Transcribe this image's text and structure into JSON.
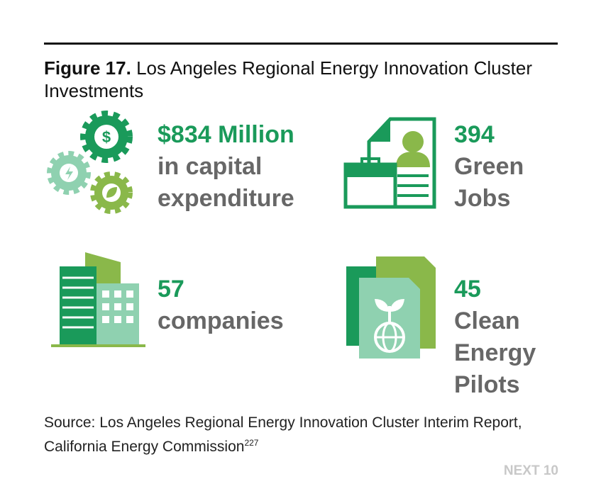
{
  "figure": {
    "label": "Figure 17.",
    "title": "Los Angeles Regional Energy Innovation Cluster Investments"
  },
  "stats": [
    {
      "headline": "$834 Million",
      "lines": [
        "in capital",
        "expenditure"
      ]
    },
    {
      "headline": "394",
      "lines": [
        "Green",
        "Jobs"
      ]
    },
    {
      "headline": "57",
      "lines": [
        "companies"
      ]
    },
    {
      "headline": "45",
      "lines": [
        "Clean",
        "Energy",
        "Pilots"
      ]
    }
  ],
  "source": {
    "text": "Source: Los Angeles Regional Energy Innovation Cluster Interim Report, California Energy Commission",
    "note": "227"
  },
  "footer": {
    "brand": "NEXT 10"
  }
}
